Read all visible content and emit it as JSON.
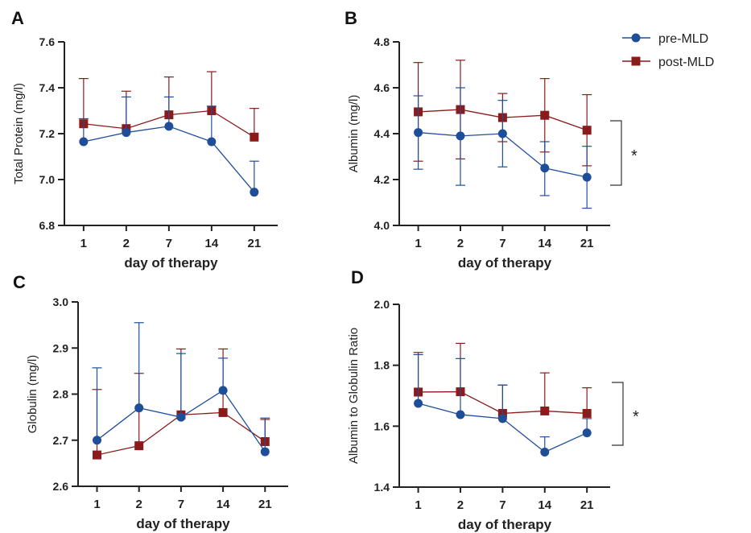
{
  "legend": [
    {
      "label": "pre-MLD",
      "color": "#1f4e99",
      "marker": "circle"
    },
    {
      "label": "post-MLD",
      "color": "#8b1a1a",
      "marker": "square"
    }
  ],
  "chart_data": [
    {
      "panel": "A",
      "type": "line",
      "categories": [
        "1",
        "2",
        "7",
        "14",
        "21"
      ],
      "xlabel": "day of therapy",
      "ylabel": "Total Protein (mg/l)",
      "ylim": [
        6.8,
        7.6
      ],
      "yticks": [
        "6.8",
        "7.0",
        "7.2",
        "7.4",
        "7.6"
      ],
      "significance": "",
      "series": [
        {
          "name": "pre-MLD",
          "values": [
            7.165,
            7.205,
            7.232,
            7.165,
            6.945
          ],
          "error_high": [
            7.265,
            7.36,
            7.36,
            7.32,
            7.08
          ]
        },
        {
          "name": "post-MLD",
          "values": [
            7.243,
            7.222,
            7.282,
            7.3,
            7.185
          ],
          "error_high": [
            7.44,
            7.385,
            7.447,
            7.47,
            7.31
          ]
        }
      ]
    },
    {
      "panel": "B",
      "type": "line",
      "categories": [
        "1",
        "2",
        "7",
        "14",
        "21"
      ],
      "xlabel": "day of therapy",
      "ylabel": "Albumin (mg/l)",
      "ylim": [
        4.0,
        4.8
      ],
      "yticks": [
        "4.0",
        "4.2",
        "4.4",
        "4.6",
        "4.8"
      ],
      "significance": "*",
      "series": [
        {
          "name": "pre-MLD",
          "values": [
            4.405,
            4.39,
            4.4,
            4.25,
            4.21
          ],
          "error_high": [
            4.565,
            4.6,
            4.545,
            4.365,
            4.345
          ],
          "error_low": [
            4.245,
            4.175,
            4.255,
            4.13,
            4.075
          ]
        },
        {
          "name": "post-MLD",
          "values": [
            4.495,
            4.505,
            4.47,
            4.48,
            4.415
          ],
          "error_high": [
            4.71,
            4.72,
            4.575,
            4.64,
            4.57
          ],
          "error_low": [
            4.28,
            4.29,
            4.365,
            4.32,
            4.26
          ]
        }
      ]
    },
    {
      "panel": "C",
      "type": "line",
      "categories": [
        "1",
        "2",
        "7",
        "14",
        "21"
      ],
      "xlabel": "day of therapy",
      "ylabel": "Globulin (mg/l)",
      "ylim": [
        2.6,
        3.0
      ],
      "yticks": [
        "2.6",
        "2.7",
        "2.8",
        "2.9",
        "3.0"
      ],
      "significance": "",
      "series": [
        {
          "name": "pre-MLD",
          "values": [
            2.7,
            2.77,
            2.75,
            2.808,
            2.675
          ],
          "error_high": [
            2.857,
            2.955,
            2.888,
            2.878,
            2.748
          ]
        },
        {
          "name": "post-MLD",
          "values": [
            2.668,
            2.688,
            2.755,
            2.76,
            2.697
          ],
          "error_high": [
            2.81,
            2.845,
            2.898,
            2.898,
            2.745
          ]
        }
      ]
    },
    {
      "panel": "D",
      "type": "line",
      "categories": [
        "1",
        "2",
        "7",
        "14",
        "21"
      ],
      "xlabel": "day of therapy",
      "ylabel": "Albumin to Globulin Ratio",
      "ylim": [
        1.4,
        2.0
      ],
      "yticks": [
        "1.4",
        "1.6",
        "1.8",
        "2.0"
      ],
      "significance": "*",
      "series": [
        {
          "name": "pre-MLD",
          "values": [
            1.675,
            1.638,
            1.625,
            1.515,
            1.578
          ],
          "error_high": [
            1.835,
            1.822,
            1.735,
            1.565,
            1.625
          ]
        },
        {
          "name": "post-MLD",
          "values": [
            1.712,
            1.713,
            1.642,
            1.65,
            1.642
          ],
          "error_high": [
            1.842,
            1.872,
            1.735,
            1.775,
            1.726
          ]
        }
      ]
    }
  ]
}
